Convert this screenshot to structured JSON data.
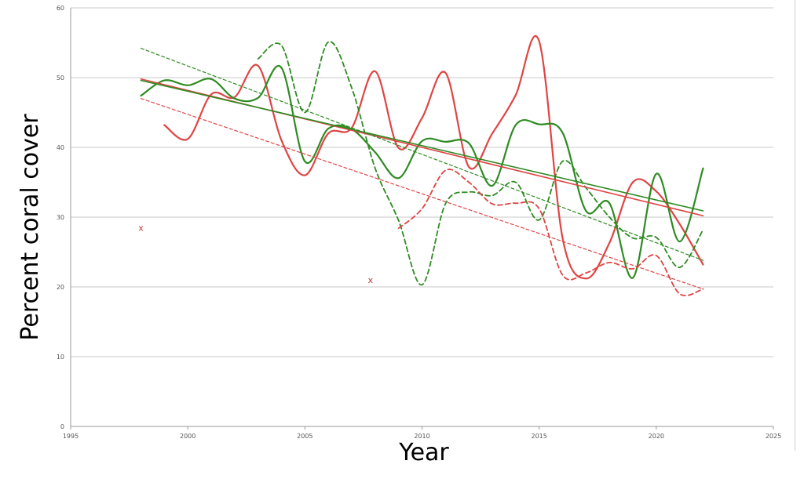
{
  "chart_data": {
    "type": "line",
    "title": "",
    "xlabel": "Year",
    "ylabel": "Percent coral cover",
    "xlim": [
      1995,
      2025
    ],
    "ylim": [
      0,
      60
    ],
    "x_ticks": [
      1995,
      2000,
      2005,
      2010,
      2015,
      2020,
      2025
    ],
    "y_ticks": [
      0,
      10,
      20,
      30,
      40,
      50,
      60
    ],
    "grid": "horizontal",
    "legend": "none",
    "series": [
      {
        "style": "solid",
        "color": "#e04444",
        "kind": "data",
        "x": [
          1999,
          2000,
          2001,
          2002,
          2003,
          2004,
          2005,
          2006,
          2007,
          2008,
          2009,
          2010,
          2011,
          2012,
          2013,
          2014,
          2015,
          2016,
          2017,
          2018,
          2019,
          2020,
          2021,
          2022
        ],
        "y": [
          43.2,
          41.2,
          47.6,
          47.2,
          51.7,
          41.0,
          36.0,
          42.0,
          42.8,
          50.9,
          39.9,
          44.2,
          50.7,
          37.2,
          42.0,
          47.5,
          55.2,
          27.0,
          21.2,
          26.3,
          35.0,
          33.7,
          29.0,
          23.2
        ]
      },
      {
        "style": "solid",
        "color": "#2e8b22",
        "kind": "data",
        "x": [
          1998,
          1999,
          2000,
          2001,
          2002,
          2003,
          2004,
          2005,
          2006,
          2007,
          2008,
          2009,
          2010,
          2011,
          2012,
          2013,
          2014,
          2015,
          2016,
          2017,
          2018,
          2019,
          2020,
          2021,
          2022
        ],
        "y": [
          47.4,
          49.6,
          48.9,
          49.8,
          47.0,
          47.1,
          51.4,
          38.0,
          42.7,
          42.6,
          39.3,
          35.6,
          40.9,
          40.8,
          40.6,
          34.5,
          43.2,
          43.3,
          42.1,
          30.9,
          32.0,
          21.3,
          36.2,
          26.5,
          37.0
        ]
      },
      {
        "style": "dashed",
        "color": "#2e8b22",
        "kind": "data",
        "x": [
          2003,
          2004,
          2005,
          2006,
          2007,
          2008,
          2009,
          2010,
          2011,
          2012,
          2013,
          2014,
          2015,
          2016,
          2017,
          2018,
          2019,
          2020,
          2021,
          2022
        ],
        "y": [
          52.7,
          54.6,
          45.0,
          55.1,
          48.5,
          37.0,
          29.5,
          20.3,
          31.9,
          33.6,
          33.1,
          35.0,
          29.6,
          38.0,
          34.2,
          30.0,
          27.0,
          27.1,
          22.8,
          28.2
        ]
      },
      {
        "style": "dashed",
        "color": "#e04444",
        "kind": "data",
        "x": [
          2009,
          2010,
          2011,
          2012,
          2013,
          2014,
          2015,
          2016,
          2017,
          2018,
          2019,
          2020,
          2021,
          2022
        ],
        "y": [
          28.4,
          31.2,
          36.7,
          35.0,
          31.9,
          32.0,
          31.2,
          21.7,
          22.0,
          23.5,
          22.6,
          24.5,
          19.0,
          19.7
        ]
      },
      {
        "style": "solid",
        "color": "#e04444",
        "kind": "trend",
        "x": [
          1998,
          2022
        ],
        "y": [
          49.8,
          30.2
        ]
      },
      {
        "style": "solid",
        "color": "#2e8b22",
        "kind": "trend",
        "x": [
          1998,
          2022
        ],
        "y": [
          49.6,
          30.9
        ]
      },
      {
        "style": "dashed",
        "color": "#2e8b22",
        "kind": "trend",
        "x": [
          1998,
          2022
        ],
        "y": [
          54.2,
          23.8
        ]
      },
      {
        "style": "dashed",
        "color": "#e04444",
        "kind": "trend",
        "x": [
          1998,
          2022
        ],
        "y": [
          47.0,
          19.7
        ]
      }
    ],
    "annotations": [
      {
        "text": "x",
        "x": 1998,
        "y": 28.5,
        "color": "#cc3333"
      },
      {
        "text": "x",
        "x": 2007.8,
        "y": 21.0,
        "color": "#cc3333"
      }
    ]
  }
}
